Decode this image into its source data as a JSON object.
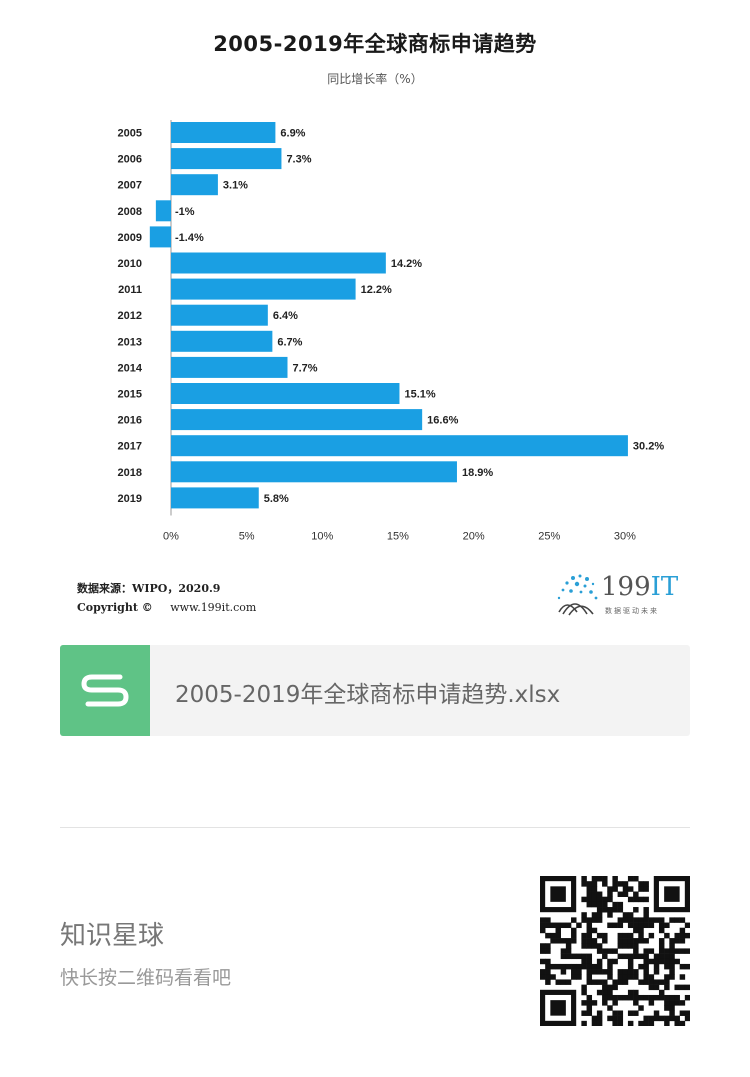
{
  "chart_data": {
    "type": "bar",
    "orientation": "horizontal",
    "title": "2005-2019年全球商标申请趋势",
    "subtitle": "同比增长率（%）",
    "categories": [
      "2005",
      "2006",
      "2007",
      "2008",
      "2009",
      "2010",
      "2011",
      "2012",
      "2013",
      "2014",
      "2015",
      "2016",
      "2017",
      "2018",
      "2019"
    ],
    "values": [
      6.9,
      7.3,
      3.1,
      -1,
      -1.4,
      14.2,
      12.2,
      6.4,
      6.7,
      7.7,
      15.1,
      16.6,
      30.2,
      18.9,
      5.8
    ],
    "data_labels": [
      "6.9%",
      "7.3%",
      "3.1%",
      "-1%",
      "-1.4%",
      "14.2%",
      "12.2%",
      "6.4%",
      "6.7%",
      "7.7%",
      "15.1%",
      "16.6%",
      "30.2%",
      "18.9%",
      "5.8%"
    ],
    "xlim": [
      -1.5,
      30.2
    ],
    "x_ticks": [
      0,
      5,
      10,
      15,
      20,
      25,
      30
    ],
    "x_tick_labels": [
      "0%",
      "5%",
      "10%",
      "15%",
      "20%",
      "25%",
      "30%"
    ],
    "bar_color": "#1a9fe3",
    "grid": false
  },
  "footer": {
    "source": "数据来源：WIPO，2020.9",
    "copyright_label": "Copyright ©",
    "website": "www.199it.com"
  },
  "logo": {
    "number": "199",
    "letters": "IT",
    "tagline": "数据驱动未来"
  },
  "file": {
    "name": "2005-2019年全球商标申请趋势.xlsx",
    "icon": "spreadsheet-s-icon",
    "icon_color": "#5fc386"
  },
  "planet": {
    "title": "知识星球",
    "hint": "快长按二维码看看吧"
  }
}
